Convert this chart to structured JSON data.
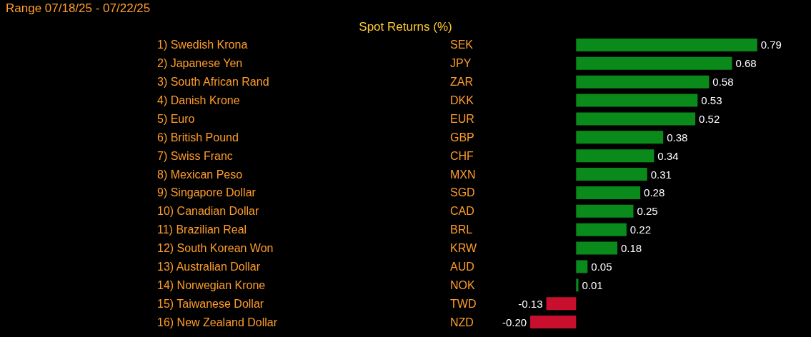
{
  "chart_data": {
    "type": "bar",
    "orientation": "horizontal",
    "title": "Spot Returns (%)",
    "annotations": [
      "Range 07/18/25 - 07/22/25"
    ],
    "categories": [
      "1) Swedish Krona",
      "2) Japanese Yen",
      "3) South African Rand",
      "4) Danish Krone",
      "5) Euro",
      "6) British Pound",
      "7) Swiss Franc",
      "8) Mexican Peso",
      "9) Singapore Dollar",
      "10) Canadian Dollar",
      "11) Brazilian Real",
      "12) South Korean Won",
      "13) Australian Dollar",
      "14) Norwegian Krone",
      "15) Taiwanese Dollar",
      "16) New Zealand Dollar"
    ],
    "y2_categories": [
      "SEK",
      "JPY",
      "ZAR",
      "DKK",
      "EUR",
      "GBP",
      "CHF",
      "MXN",
      "SGD",
      "CAD",
      "BRL",
      "KRW",
      "AUD",
      "NOK",
      "TWD",
      "NZD"
    ],
    "values": [
      0.79,
      0.68,
      0.58,
      0.53,
      0.52,
      0.38,
      0.34,
      0.31,
      0.28,
      0.25,
      0.22,
      0.18,
      0.05,
      0.01,
      -0.13,
      -0.2
    ],
    "value_labels": [
      "0.79",
      "0.68",
      "0.58",
      "0.53",
      "0.52",
      "0.38",
      "0.34",
      "0.31",
      "0.28",
      "0.25",
      "0.22",
      "0.18",
      "0.05",
      "0.01",
      "-0.13",
      "-0.20"
    ],
    "colors": [
      "#0a8a1a",
      "#0a8a1a",
      "#0a8a1a",
      "#0a8a1a",
      "#0a8a1a",
      "#0a8a1a",
      "#0a8a1a",
      "#0a8a1a",
      "#0a8a1a",
      "#0a8a1a",
      "#0a8a1a",
      "#0a8a1a",
      "#0a8a1a",
      "#0a8a1a",
      "#c8102e",
      "#c8102e"
    ]
  }
}
